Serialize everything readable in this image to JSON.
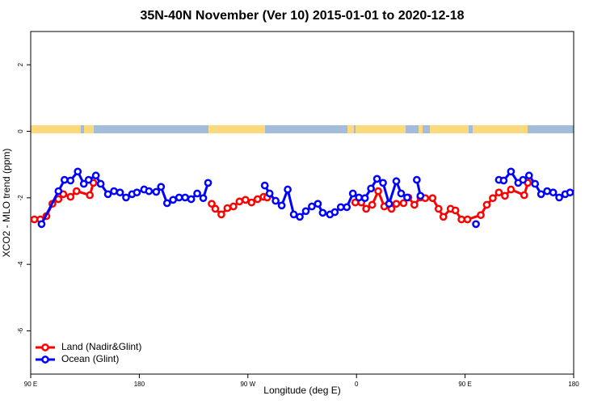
{
  "chart_data": {
    "type": "line",
    "title": "35N-40N November (Ver 10)   2015-01-01 to 2020-12-18",
    "x_label": "Longitude (deg E)",
    "y_label": "XCO2 - MLO trend (ppm)",
    "xlim": [
      90,
      540
    ],
    "xticks": [
      {
        "value": 90,
        "label": "90 E"
      },
      180,
      {
        "value": 270,
        "label": "90 W"
      },
      {
        "value": 360,
        "label": "0"
      },
      {
        "value": 450,
        "label": "90 E"
      },
      {
        "value": 540,
        "label": "180"
      }
    ],
    "ylim": [
      -7.3,
      3
    ],
    "yticks": [
      -6,
      -4,
      -2,
      0,
      2
    ],
    "legend": "bottom-left",
    "series": [
      {
        "name": "Land (Nadir&Glint)",
        "color": "#ff0000",
        "x": [
          93,
          98,
          103,
          108,
          113,
          117,
          123,
          128,
          139,
          142,
          null,
          240,
          243,
          248,
          253,
          258,
          263,
          268,
          273,
          278,
          283,
          286,
          null,
          359,
          364,
          368,
          373,
          378,
          383,
          389,
          393,
          399,
          403,
          408,
          413,
          417,
          423,
          428,
          432,
          438,
          442,
          447,
          452,
          463,
          468,
          473,
          478,
          483,
          488,
          499,
          502
        ],
        "values": [
          -2.65,
          -2.65,
          -2.55,
          -2.18,
          -2.04,
          -1.89,
          -1.97,
          -1.8,
          -1.92,
          -1.55,
          null,
          -2.18,
          -2.33,
          -2.5,
          -2.31,
          -2.26,
          -2.11,
          -2.06,
          -2.14,
          -2.04,
          -1.97,
          -1.99,
          null,
          -2.14,
          -2.14,
          -2.33,
          -2.21,
          -1.8,
          -2.26,
          -2.33,
          -2.18,
          -2.16,
          -1.99,
          -2.21,
          -1.99,
          -2.01,
          -2.01,
          -2.33,
          -2.57,
          -2.33,
          -2.38,
          -2.65,
          -2.65,
          -2.52,
          -2.21,
          -2.01,
          -1.84,
          -1.94,
          -1.75,
          -1.92,
          -1.55
        ]
      },
      {
        "name": "Ocean (Glint)",
        "color": "#0000ff",
        "x": [
          99,
          113,
          118,
          123,
          129,
          134,
          138,
          144,
          148,
          154,
          159,
          164,
          169,
          174,
          178,
          184,
          188,
          194,
          198,
          203,
          208,
          213,
          218,
          223,
          228,
          233,
          237,
          null,
          284,
          288,
          293,
          298,
          303,
          308,
          313,
          318,
          323,
          328,
          332,
          338,
          342,
          347,
          352,
          357,
          362,
          367,
          372,
          377,
          382,
          387,
          393,
          397,
          402,
          null,
          410,
          413,
          null,
          459,
          null,
          478,
          482,
          488,
          494,
          498,
          503,
          508,
          513,
          518,
          523,
          528,
          533,
          537
        ],
        "values": [
          -2.79,
          -1.8,
          -1.46,
          -1.48,
          -1.21,
          -1.58,
          -1.46,
          -1.33,
          -1.58,
          -1.89,
          -1.8,
          -1.84,
          -1.99,
          -1.89,
          -1.84,
          -1.75,
          -1.8,
          -1.82,
          -1.67,
          -2.16,
          -2.06,
          -1.99,
          -1.99,
          -2.04,
          -1.87,
          -2.01,
          -1.55,
          null,
          -1.63,
          -1.87,
          -2.09,
          -2.23,
          -1.75,
          -2.5,
          -2.57,
          -2.4,
          -2.26,
          -2.18,
          -2.45,
          -2.5,
          -2.43,
          -2.28,
          -2.28,
          -1.87,
          -1.99,
          -2.01,
          -1.72,
          -1.43,
          -1.55,
          -2.18,
          -1.5,
          -1.87,
          -1.99,
          null,
          -1.46,
          -1.94,
          null,
          -2.79,
          null,
          -1.46,
          -1.48,
          -1.21,
          -1.55,
          -1.46,
          -1.33,
          -1.58,
          -1.89,
          -1.8,
          -1.84,
          -1.99,
          -1.89,
          -1.84
        ]
      }
    ]
  }
}
